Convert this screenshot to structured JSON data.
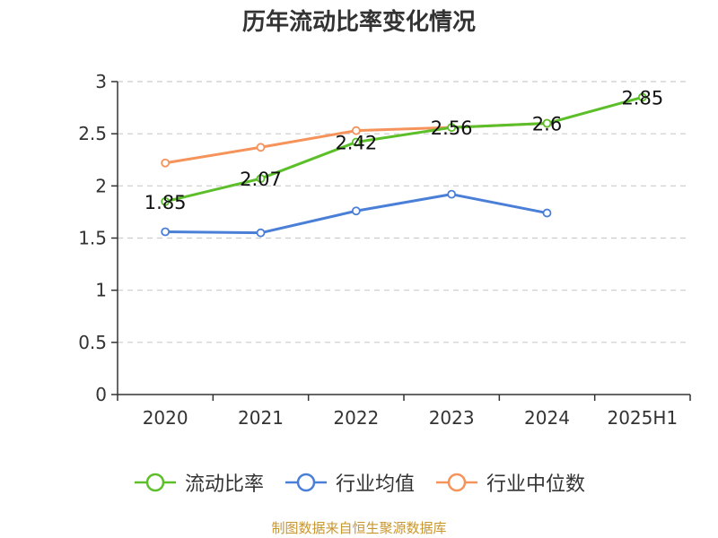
{
  "title": "历年流动比率变化情况",
  "source_note": "制图数据来自恒生聚源数据库",
  "colors": {
    "current_ratio": "#5cbf2a",
    "industry_mean": "#4a7fd8",
    "industry_median": "#f5935a",
    "grid": "#cccccc",
    "axis": "#333333"
  },
  "chart_data": {
    "type": "line",
    "categories": [
      "2020",
      "2021",
      "2022",
      "2023",
      "2024",
      "2025H1"
    ],
    "ylim": [
      0,
      3
    ],
    "yticks": [
      "0",
      "0.5",
      "1",
      "1.5",
      "2",
      "2.5",
      "3"
    ],
    "grid": true,
    "legend_position": "bottom",
    "series": [
      {
        "name": "流动比率",
        "color_key": "current_ratio",
        "values": [
          1.85,
          2.07,
          2.42,
          2.56,
          2.6,
          2.85
        ],
        "labels": [
          "1.85",
          "2.07",
          "2.42",
          "2.56",
          "2.6",
          "2.85"
        ]
      },
      {
        "name": "行业均值",
        "color_key": "industry_mean",
        "values": [
          1.56,
          1.55,
          1.76,
          1.92,
          1.74,
          null
        ]
      },
      {
        "name": "行业中位数",
        "color_key": "industry_median",
        "values": [
          2.22,
          2.37,
          2.53,
          2.56,
          2.6,
          null
        ]
      }
    ]
  }
}
